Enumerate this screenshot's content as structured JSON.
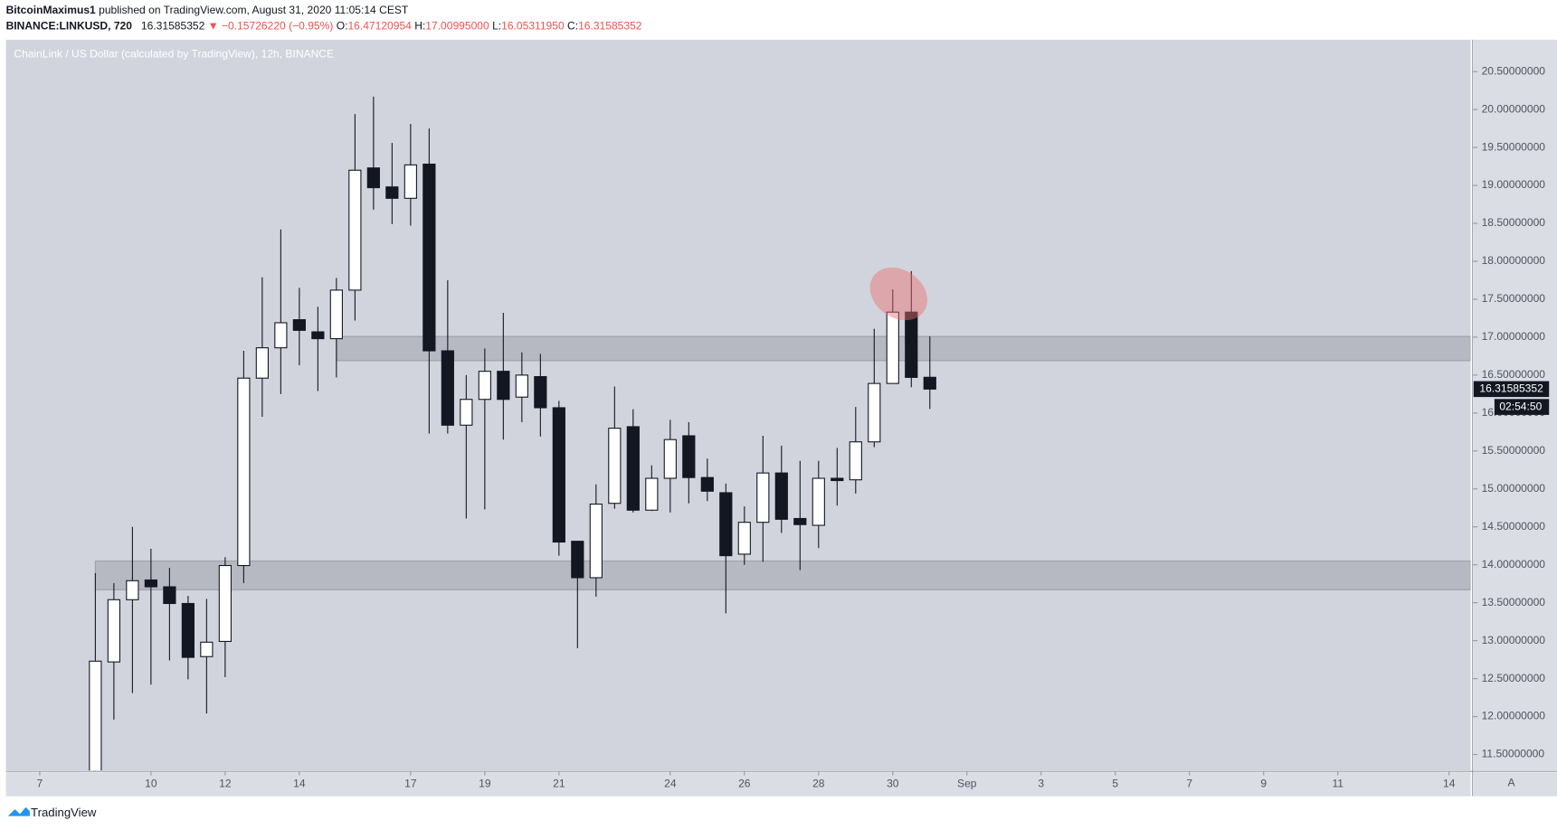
{
  "header": {
    "author": "BitcoinMaximus1",
    "published": "published on TradingView.com, August 31, 2020 11:05:14 CEST",
    "symbol": "BINANCE:LINKUSD, 720",
    "price": "16.31585352",
    "change": "▼ −0.15726220 (−0.95%)",
    "o_label": "O:",
    "o": "16.47120954",
    "h_label": "H:",
    "h": "17.00995000",
    "l_label": "L:",
    "l": "16.05311950",
    "c_label": "C:",
    "c": "16.31585352"
  },
  "footer": {
    "brand": "TradingView",
    "auto": "A"
  },
  "chart_data": {
    "type": "candlestick",
    "title": "ChainLink / US Dollar (calculated by TradingView), 12h, BINANCE",
    "x": [
      8.5,
      9,
      9.5,
      10,
      10.5,
      11,
      11.5,
      12,
      12.5,
      13,
      13.5,
      14,
      14.5,
      15,
      15.5,
      16,
      16.5,
      17,
      17.5,
      18,
      18.5,
      19,
      19.5,
      20,
      20.5,
      21,
      21.5,
      22,
      22.5,
      23,
      23.5,
      24,
      24.5,
      25,
      25.5,
      26,
      26.5,
      27,
      27.5,
      28,
      28.5,
      29,
      29.5,
      30,
      30.5,
      31
    ],
    "open": [
      11.25,
      12.72,
      13.54,
      13.8,
      13.71,
      13.49,
      12.79,
      12.99,
      13.99,
      16.46,
      16.86,
      17.23,
      17.07,
      16.98,
      17.62,
      19.23,
      18.98,
      18.83,
      19.28,
      16.82,
      15.84,
      16.18,
      16.55,
      16.21,
      16.48,
      16.07,
      14.31,
      13.83,
      14.81,
      15.82,
      14.72,
      15.14,
      15.7,
      15.15,
      14.95,
      14.14,
      14.56,
      15.21,
      14.61,
      14.52,
      15.14,
      15.12,
      15.62,
      16.39,
      17.33,
      16.47120954
    ],
    "high": [
      13.89,
      13.76,
      14.5,
      14.21,
      13.96,
      13.59,
      13.55,
      14.1,
      16.82,
      17.79,
      18.42,
      17.65,
      17.4,
      17.78,
      19.94,
      20.17,
      19.56,
      19.81,
      19.75,
      17.75,
      16.5,
      16.85,
      17.32,
      16.8,
      16.78,
      16.16,
      14.31,
      15.06,
      16.35,
      16.05,
      15.31,
      15.91,
      15.88,
      15.4,
      15.07,
      14.77,
      15.7,
      15.57,
      15.37,
      15.37,
      15.54,
      16.08,
      17.11,
      17.63,
      17.87,
      17.00995
    ],
    "low": [
      11.1,
      11.96,
      12.31,
      12.42,
      12.74,
      12.49,
      12.04,
      12.52,
      13.76,
      15.95,
      16.25,
      16.63,
      16.29,
      16.47,
      17.22,
      18.68,
      18.49,
      18.47,
      15.73,
      15.73,
      14.61,
      14.73,
      15.65,
      15.88,
      15.69,
      14.12,
      12.9,
      13.58,
      14.74,
      14.69,
      14.71,
      14.69,
      14.81,
      14.84,
      13.36,
      14.0,
      14.04,
      14.42,
      13.93,
      14.22,
      14.78,
      14.94,
      15.55,
      16.39,
      16.34,
      16.0531195
    ],
    "close": [
      12.73,
      13.54,
      13.79,
      13.71,
      13.49,
      12.78,
      12.98,
      13.99,
      16.46,
      16.86,
      17.19,
      17.09,
      16.98,
      17.62,
      19.2,
      18.97,
      18.83,
      19.27,
      16.82,
      15.84,
      16.18,
      16.55,
      16.18,
      16.5,
      16.07,
      14.3,
      13.83,
      14.8,
      15.8,
      14.72,
      15.14,
      15.65,
      15.15,
      14.97,
      14.12,
      14.56,
      15.21,
      14.6,
      14.53,
      15.14,
      15.11,
      15.62,
      16.39,
      17.33,
      16.47,
      16.31585352
    ],
    "countdown": "02:54:50",
    "zones": [
      {
        "x_start": 8.5,
        "top": 14.05,
        "bottom": 13.67
      },
      {
        "x_start": 15.0,
        "top": 17.01,
        "bottom": 16.69
      }
    ],
    "xlim": [
      6.09,
      45.58
    ],
    "ylim": [
      11.29,
      20.92
    ],
    "xticks": [
      7,
      10,
      12,
      14,
      17,
      19,
      21,
      24,
      26,
      28,
      30,
      {
        "value": 32,
        "label": "Sep"
      },
      {
        "value": 34,
        "label": "3"
      },
      {
        "value": 36,
        "label": "5"
      },
      {
        "value": 38,
        "label": "7"
      },
      {
        "value": 40,
        "label": "9"
      },
      {
        "value": 42,
        "label": "11"
      },
      {
        "value": 45,
        "label": "14"
      }
    ],
    "yticks": [
      {
        "value": 11.5,
        "label": "11.50000000"
      },
      {
        "value": 12,
        "label": "12.00000000"
      },
      {
        "value": 12.5,
        "label": "12.50000000"
      },
      {
        "value": 13,
        "label": "13.00000000"
      },
      {
        "value": 13.5,
        "label": "13.50000000"
      },
      {
        "value": 14,
        "label": "14.00000000"
      },
      {
        "value": 14.5,
        "label": "14.50000000"
      },
      {
        "value": 15,
        "label": "15.00000000"
      },
      {
        "value": 15.5,
        "label": "15.50000000"
      },
      {
        "value": 16,
        "label": "16.00000000"
      },
      {
        "value": 16.5,
        "label": "16.50000000"
      },
      {
        "value": 17,
        "label": "17.00000000"
      },
      {
        "value": 17.5,
        "label": "17.50000000"
      },
      {
        "value": 18,
        "label": "18.00000000"
      },
      {
        "value": 18.5,
        "label": "18.50000000"
      },
      {
        "value": 19,
        "label": "19.00000000"
      },
      {
        "value": 19.5,
        "label": "19.50000000"
      },
      {
        "value": 20,
        "label": "20.00000000"
      },
      {
        "value": 20.5,
        "label": "20.50000000"
      }
    ],
    "up_color": "#ffffff",
    "down_color": "#131722",
    "zone_color": "#9598a1"
  }
}
